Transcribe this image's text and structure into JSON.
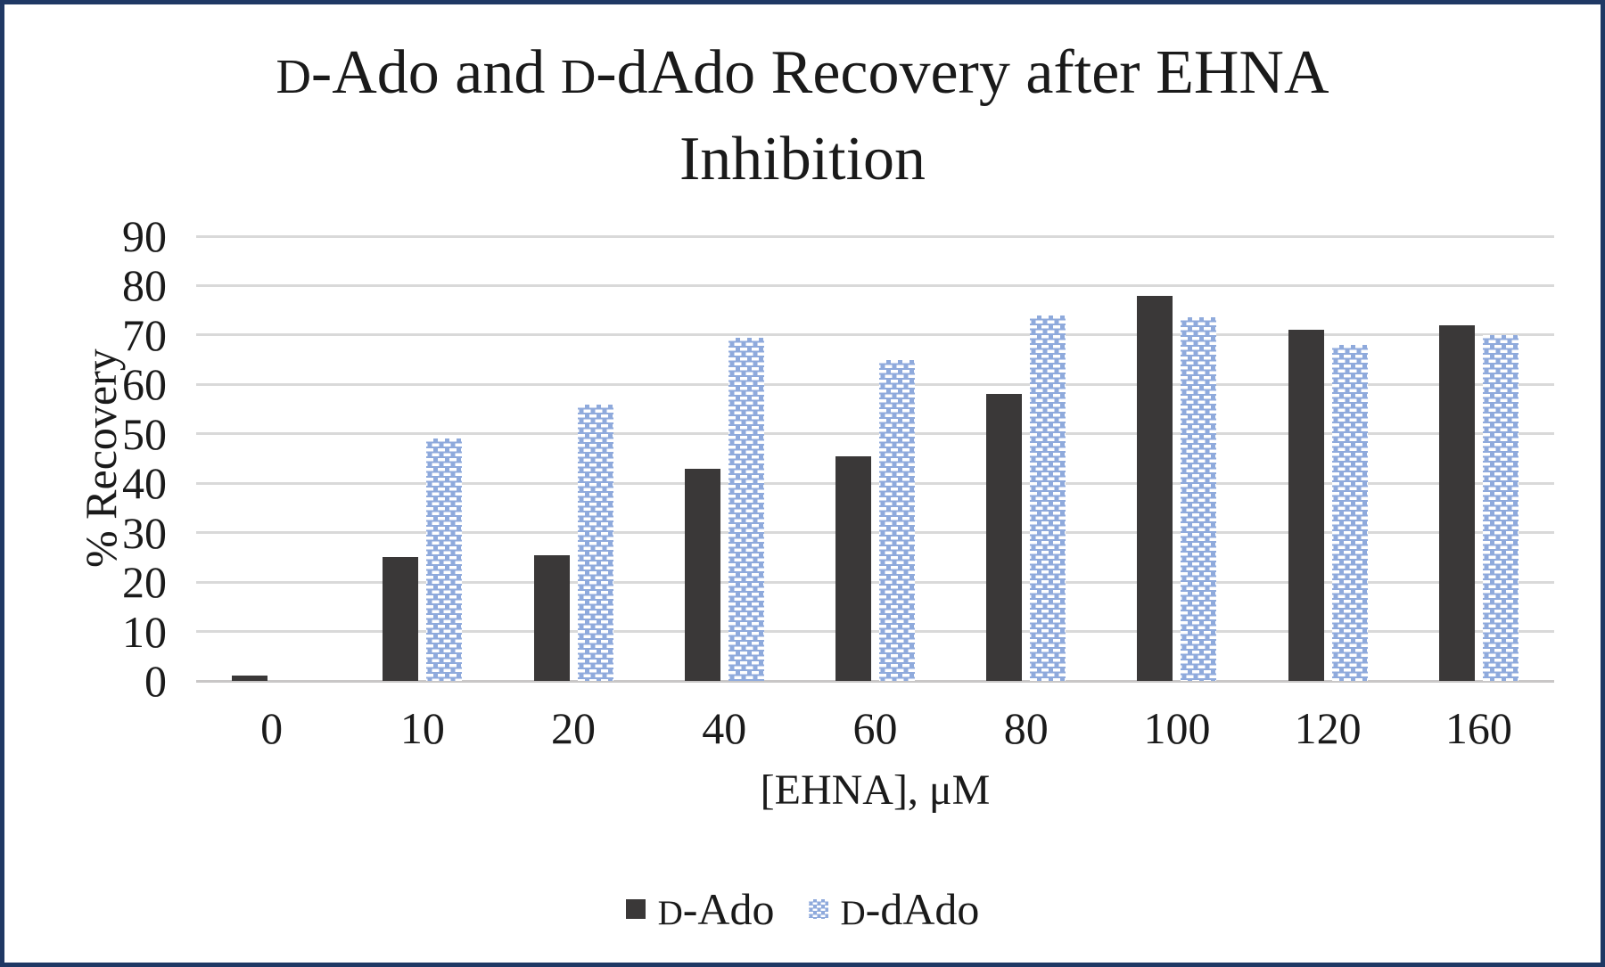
{
  "colors": {
    "frame_border": "#1f3864",
    "d_ado_bar": "#3a3838",
    "d_dado_bar": "#8faadc",
    "d_dado_dash": "#ffffff",
    "gridline": "#d9d9d9",
    "axis_line": "#c9c7c7",
    "text": "#1a1a1a"
  },
  "chart_data": {
    "type": "bar",
    "title": "D-Ado and D-dAdo Recovery after EHNA Inhibition",
    "title_lines": [
      [
        {
          "text": "D",
          "smallcap": true
        },
        {
          "text": "-Ado and "
        },
        {
          "text": "D",
          "smallcap": true
        },
        {
          "text": "-dAdo Recovery after EHNA"
        }
      ],
      [
        {
          "text": "Inhibition"
        }
      ]
    ],
    "categories": [
      "0",
      "10",
      "20",
      "40",
      "60",
      "80",
      "100",
      "120",
      "160"
    ],
    "series": [
      {
        "name": "D-Ado",
        "label_parts": [
          {
            "text": "D",
            "smallcap": true
          },
          {
            "text": "-Ado"
          }
        ],
        "pattern": "solid",
        "color": "#3a3838",
        "values": [
          1,
          25,
          25.5,
          43,
          45.5,
          58,
          78,
          71,
          72
        ]
      },
      {
        "name": "D-dAdo",
        "label_parts": [
          {
            "text": "D",
            "smallcap": true
          },
          {
            "text": "-dAdo"
          }
        ],
        "pattern": "dashed-brick",
        "color": "#8faadc",
        "values": [
          0,
          49,
          56,
          69.5,
          65,
          74,
          73.5,
          68,
          70
        ]
      }
    ],
    "xlabel": "[EHNA], μM",
    "ylabel": "% Recovery",
    "ylim": [
      0,
      90
    ],
    "yticks": [
      0,
      10,
      20,
      30,
      40,
      50,
      60,
      70,
      80,
      90
    ],
    "grid": true,
    "legend_position": "bottom"
  }
}
